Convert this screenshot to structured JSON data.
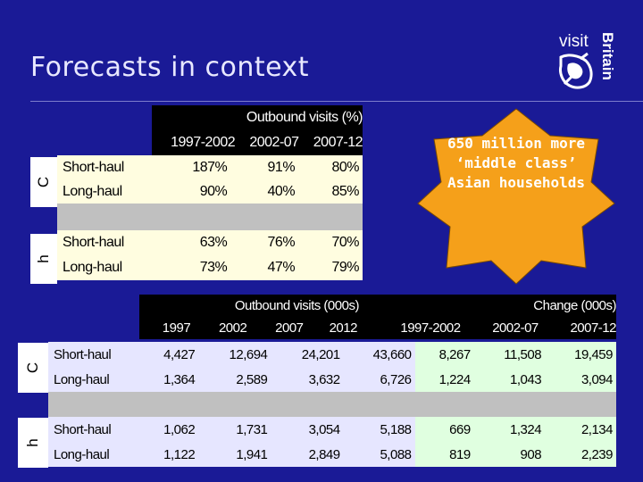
{
  "slide": {
    "title": "Forecasts in context",
    "logo": {
      "visit": "visit",
      "britain": "Britain"
    },
    "callout": "650 million more ‘middle class’ Asian households",
    "side_labels": {
      "top1": "C",
      "bottom1": "h",
      "top2": "C",
      "bottom2": "h"
    }
  },
  "colors": {
    "background": "#1a1a96",
    "callout": "#f5a01a",
    "header": "#000000",
    "cell_yellow": "#fffde0",
    "cell_purple": "#e6e6ff",
    "cell_green": "#e0ffe0",
    "separator": "#c0c0c0"
  },
  "table1": {
    "header": "Outbound visits (%)",
    "columns": [
      "1997-2002",
      "2002-07",
      "2007-12"
    ],
    "rows": [
      {
        "label": "Short-haul",
        "values": [
          "187%",
          "91%",
          "80%"
        ]
      },
      {
        "label": "Long-haul",
        "values": [
          "90%",
          "40%",
          "85%"
        ]
      },
      {
        "label": "Short-haul",
        "values": [
          "63%",
          "76%",
          "70%"
        ]
      },
      {
        "label": "Long-haul",
        "values": [
          "73%",
          "47%",
          "79%"
        ]
      }
    ]
  },
  "table2": {
    "header_visits": "Outbound visits (000s)",
    "header_change": "Change (000s)",
    "columns": [
      "1997",
      "2002",
      "2007",
      "2012",
      "1997-2002",
      "2002-07",
      "2007-12"
    ],
    "rows": [
      {
        "label": "Short-haul",
        "values": [
          "4,427",
          "12,694",
          "24,201",
          "43,660",
          "8,267",
          "11,508",
          "19,459"
        ]
      },
      {
        "label": "Long-haul",
        "values": [
          "1,364",
          "2,589",
          "3,632",
          "6,726",
          "1,224",
          "1,043",
          "3,094"
        ]
      },
      {
        "label": "Short-haul",
        "values": [
          "1,062",
          "1,731",
          "3,054",
          "5,188",
          "669",
          "1,324",
          "2,134"
        ]
      },
      {
        "label": "Long-haul",
        "values": [
          "1,122",
          "1,941",
          "2,849",
          "5,088",
          "819",
          "908",
          "2,239"
        ]
      }
    ]
  }
}
